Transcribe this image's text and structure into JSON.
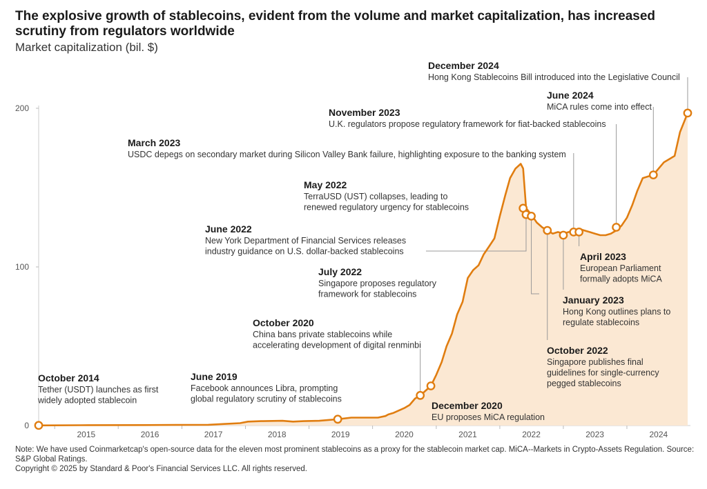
{
  "title": "The explosive growth of stablecoins, evident from the volume and market capitalization, has increased scrutiny from regulators worldwide",
  "subtitle": "Market capitalization (bil. $)",
  "footnote": {
    "note": "Note: We have used Coinmarketcap's open-source data for the eleven most prominent stablecoins as a proxy for the stablecoin market cap. MiCA--Markets in Crypto-Assets Regulation. Source: S&P Global Ratings.",
    "copyright": "Copyright © 2025 by Standard & Poor's Financial Services LLC. All rights reserved."
  },
  "colors": {
    "line": "#e07d10",
    "area": "#fbe8d3",
    "marker_fill": "#ffffff",
    "grid": "#dddddd",
    "leader": "#999999"
  },
  "chart_data": {
    "type": "area",
    "title": "The explosive growth of stablecoins, evident from the volume and market capitalization, has increased scrutiny from regulators worldwide",
    "ylabel": "Market capitalization (bil. $)",
    "xlabel": "",
    "ylim": [
      0,
      200
    ],
    "yticks": [
      0,
      100,
      200
    ],
    "xlim": [
      "2014-10-01",
      "2024-12-31"
    ],
    "xticks": [
      "2015",
      "2016",
      "2017",
      "2018",
      "2019",
      "2020",
      "2021",
      "2022",
      "2023",
      "2024"
    ],
    "grid": false,
    "series": [
      {
        "x": [
          "2014-10-01",
          "2015-06-01",
          "2016-06-01",
          "2017-06-01",
          "2017-09-01",
          "2017-12-01",
          "2018-01-15",
          "2018-04-01",
          "2018-08-01",
          "2018-10-01",
          "2018-12-01",
          "2019-03-01",
          "2019-06-15",
          "2019-09-01",
          "2019-12-01",
          "2020-02-01",
          "2020-03-15",
          "2020-04-01",
          "2020-05-01",
          "2020-06-01",
          "2020-07-01",
          "2020-08-01",
          "2020-09-01",
          "2020-10-01",
          "2020-11-01",
          "2020-12-01",
          "2021-01-01",
          "2021-02-01",
          "2021-03-01",
          "2021-04-01",
          "2021-05-01",
          "2021-06-01",
          "2021-07-01",
          "2021-08-01",
          "2021-09-01",
          "2021-10-01",
          "2021-11-01",
          "2021-12-01",
          "2022-01-01",
          "2022-02-01",
          "2022-03-01",
          "2022-04-01",
          "2022-05-01",
          "2022-05-15",
          "2022-06-01",
          "2022-07-01",
          "2022-08-01",
          "2022-09-01",
          "2022-10-01",
          "2022-11-01",
          "2022-12-01",
          "2023-01-01",
          "2023-02-01",
          "2023-03-01",
          "2023-04-01",
          "2023-05-01",
          "2023-06-01",
          "2023-07-01",
          "2023-08-01",
          "2023-09-01",
          "2023-10-01",
          "2023-11-01",
          "2023-12-01",
          "2024-01-01",
          "2024-02-01",
          "2024-03-01",
          "2024-04-01",
          "2024-05-01",
          "2024-06-01",
          "2024-07-01",
          "2024-08-01",
          "2024-09-01",
          "2024-10-01",
          "2024-11-01",
          "2024-12-15"
        ],
        "values": [
          0.1,
          0.2,
          0.3,
          0.5,
          1,
          1.5,
          2.5,
          2.8,
          3,
          2.5,
          2.8,
          3,
          4,
          5,
          5,
          5,
          6,
          7,
          8,
          9.5,
          11,
          13,
          17,
          19,
          22,
          25,
          32,
          40,
          50,
          58,
          70,
          78,
          93,
          98,
          101,
          108,
          113,
          118,
          132,
          145,
          156,
          162,
          165,
          162,
          137,
          133,
          128,
          125,
          123,
          121,
          122,
          121,
          122,
          123,
          124,
          123,
          122,
          121,
          120,
          120,
          121,
          123,
          126,
          131,
          139,
          148,
          156,
          157,
          158,
          162,
          166,
          168,
          170,
          185,
          197
        ]
      }
    ],
    "events": [
      {
        "date": "October 2014",
        "x": "2014-10-01",
        "y": 0.1,
        "text": [
          "Tether (USDT) launches as first",
          "widely adopted stablecoin"
        ]
      },
      {
        "date": "June 2019",
        "x": "2019-06-15",
        "y": 4,
        "text": [
          "Facebook announces Libra, prompting",
          "global regulatory scrutiny of stablecoins"
        ]
      },
      {
        "date": "October 2020",
        "x": "2020-10-01",
        "y": 19,
        "text": [
          "China bans private stablecoins while",
          "accelerating development of digital renminbi"
        ]
      },
      {
        "date": "December 2020",
        "x": "2020-12-01",
        "y": 25,
        "text": [
          "EU proposes MiCA regulation"
        ]
      },
      {
        "date": "May 2022",
        "x": "2022-05-15",
        "y": 137,
        "text": [
          "TerraUSD (UST) collapses, leading to",
          "renewed regulatory urgency for stablecoins"
        ]
      },
      {
        "date": "June 2022",
        "x": "2022-06-01",
        "y": 133,
        "text": [
          "New York Department of Financial Services releases",
          "industry guidance on U.S. dollar-backed stablecoins"
        ]
      },
      {
        "date": "July 2022",
        "x": "2022-07-01",
        "y": 132,
        "text": [
          "Singapore proposes regulatory",
          "framework for stablecoins"
        ]
      },
      {
        "date": "October 2022",
        "x": "2022-10-01",
        "y": 123,
        "text": [
          "Singapore publishes final",
          "guidelines for single-currency",
          "pegged stablecoins"
        ]
      },
      {
        "date": "January 2023",
        "x": "2023-01-01",
        "y": 120,
        "text": [
          "Hong Kong outlines plans to",
          "regulate stablecoins"
        ]
      },
      {
        "date": "March 2023",
        "x": "2023-03-01",
        "y": 122,
        "text": [
          "USDC depegs on secondary market during Silicon Valley Bank failure, highlighting exposure to the banking system"
        ]
      },
      {
        "date": "April 2023",
        "x": "2023-04-01",
        "y": 122,
        "text": [
          "European Parliament",
          "formally adopts MiCA"
        ]
      },
      {
        "date": "November 2023",
        "x": "2023-11-01",
        "y": 125,
        "text": [
          "U.K. regulators propose regulatory framework for fiat-backed stablecoins"
        ]
      },
      {
        "date": "June 2024",
        "x": "2024-06-01",
        "y": 158,
        "text": [
          "MiCA rules come into effect"
        ]
      },
      {
        "date": "December 2024",
        "x": "2024-12-15",
        "y": 197,
        "text": [
          "Hong Kong Stablecoins Bill introduced into the Legislative Council"
        ]
      }
    ]
  }
}
